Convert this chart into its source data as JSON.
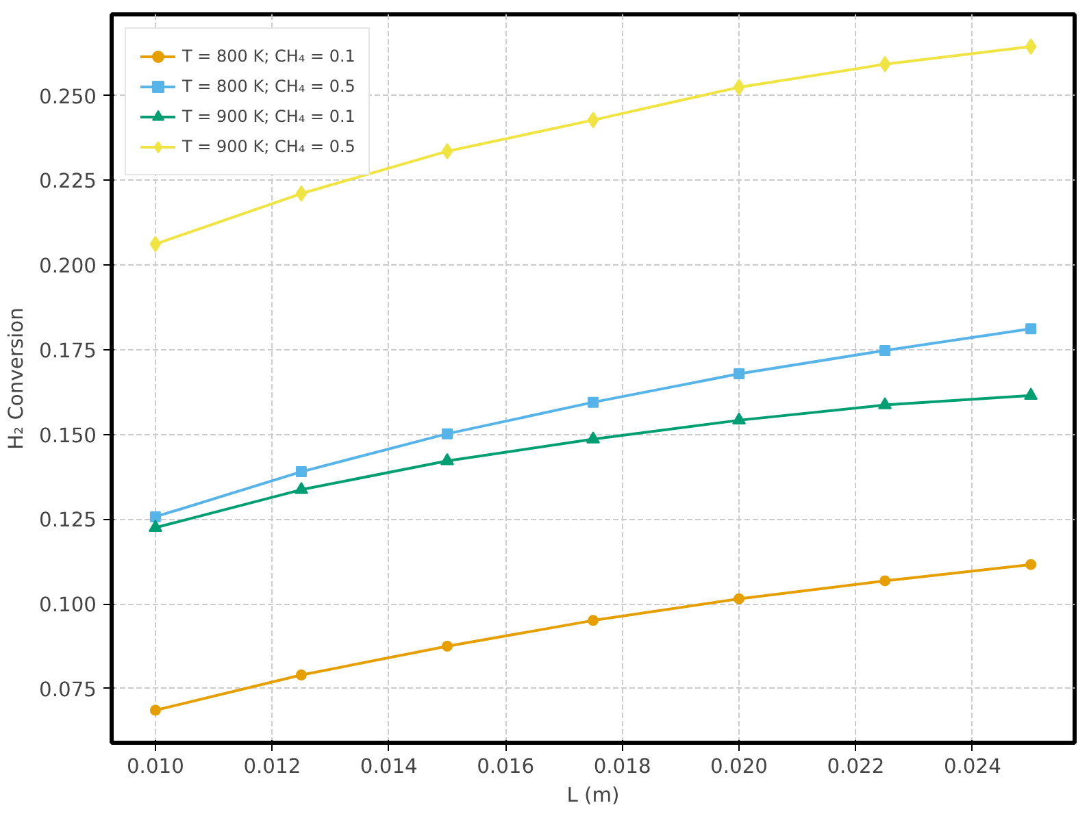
{
  "chart_data": {
    "type": "line",
    "xlabel": "L (m)",
    "ylabel": "H₂ Conversion",
    "x": [
      0.01,
      0.0125,
      0.015,
      0.0175,
      0.02,
      0.0225,
      0.025
    ],
    "series": [
      {
        "name": "T = 800 K; CH₄ = 0.1",
        "color": "#e69f00",
        "marker": "circle",
        "values": [
          0.0686,
          0.079,
          0.0875,
          0.0951,
          0.1015,
          0.1068,
          0.1116
        ]
      },
      {
        "name": "T = 800 K; CH₄ = 0.5",
        "color": "#56b4e9",
        "marker": "square",
        "values": [
          0.1257,
          0.139,
          0.1502,
          0.1595,
          0.1679,
          0.1748,
          0.1812
        ]
      },
      {
        "name": "T = 900 K; CH₄ = 0.1",
        "color": "#009e73",
        "marker": "triangle",
        "values": [
          0.1225,
          0.1337,
          0.1422,
          0.1486,
          0.1542,
          0.1587,
          0.1615
        ]
      },
      {
        "name": "T = 900 K; CH₄ = 0.5",
        "color": "#f0e442",
        "marker": "diamond",
        "values": [
          0.2062,
          0.2211,
          0.2336,
          0.2428,
          0.2525,
          0.2593,
          0.2645
        ]
      }
    ],
    "xlim": [
      0.00925,
      0.02575
    ],
    "ylim": [
      0.059,
      0.274
    ],
    "xticks": [
      {
        "value": 0.01,
        "label": "0.010"
      },
      {
        "value": 0.012,
        "label": "0.012"
      },
      {
        "value": 0.014,
        "label": "0.014"
      },
      {
        "value": 0.016,
        "label": "0.016"
      },
      {
        "value": 0.018,
        "label": "0.018"
      },
      {
        "value": 0.02,
        "label": "0.020"
      },
      {
        "value": 0.022,
        "label": "0.022"
      },
      {
        "value": 0.024,
        "label": "0.024"
      }
    ],
    "yticks": [
      {
        "value": 0.075,
        "label": "0.075"
      },
      {
        "value": 0.1,
        "label": "0.100"
      },
      {
        "value": 0.125,
        "label": "0.125"
      },
      {
        "value": 0.15,
        "label": "0.150"
      },
      {
        "value": 0.175,
        "label": "0.175"
      },
      {
        "value": 0.2,
        "label": "0.200"
      },
      {
        "value": 0.225,
        "label": "0.225"
      },
      {
        "value": 0.25,
        "label": "0.250"
      }
    ],
    "grid": true,
    "legend": "top left",
    "line_style": "solid"
  }
}
